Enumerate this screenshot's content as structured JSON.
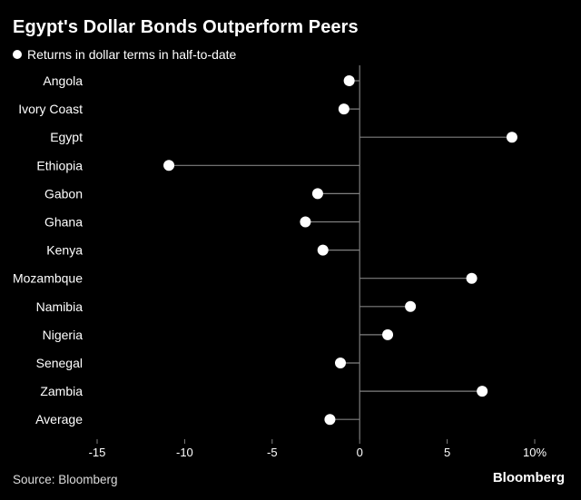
{
  "header": {
    "title": "Egypt's Dollar Bonds Outperform Peers"
  },
  "legend": {
    "label": "Returns in dollar terms in half-to-date"
  },
  "footer": {
    "source": "Source: Bloomberg",
    "brand": "Bloomberg"
  },
  "colors": {
    "background": "#000000",
    "marker": "#ffffff",
    "stem": "#7f7f7f"
  },
  "chart_data": {
    "type": "scatter",
    "subtype": "lollipop-horizontal",
    "categories": [
      "Angola",
      "Ivory Coast",
      "Egypt",
      "Ethiopia",
      "Gabon",
      "Ghana",
      "Kenya",
      "Mozambque",
      "Namibia",
      "Nigeria",
      "Senegal",
      "Zambia",
      "Average"
    ],
    "series": [
      {
        "name": "Returns in dollar terms in half-to-date",
        "values": [
          -0.6,
          -0.9,
          8.7,
          -10.9,
          -2.4,
          -3.1,
          -2.1,
          6.4,
          2.9,
          1.6,
          -1.1,
          7.0,
          -1.7
        ]
      }
    ],
    "xlim": [
      -15,
      10
    ],
    "xticks": [
      -15,
      -10,
      -5,
      0,
      5,
      10
    ],
    "xtick_labels": [
      "-15",
      "-10",
      "-5",
      "0",
      "5",
      "10%"
    ],
    "zero_line": true,
    "grid": false,
    "legend_position": "top-left"
  }
}
